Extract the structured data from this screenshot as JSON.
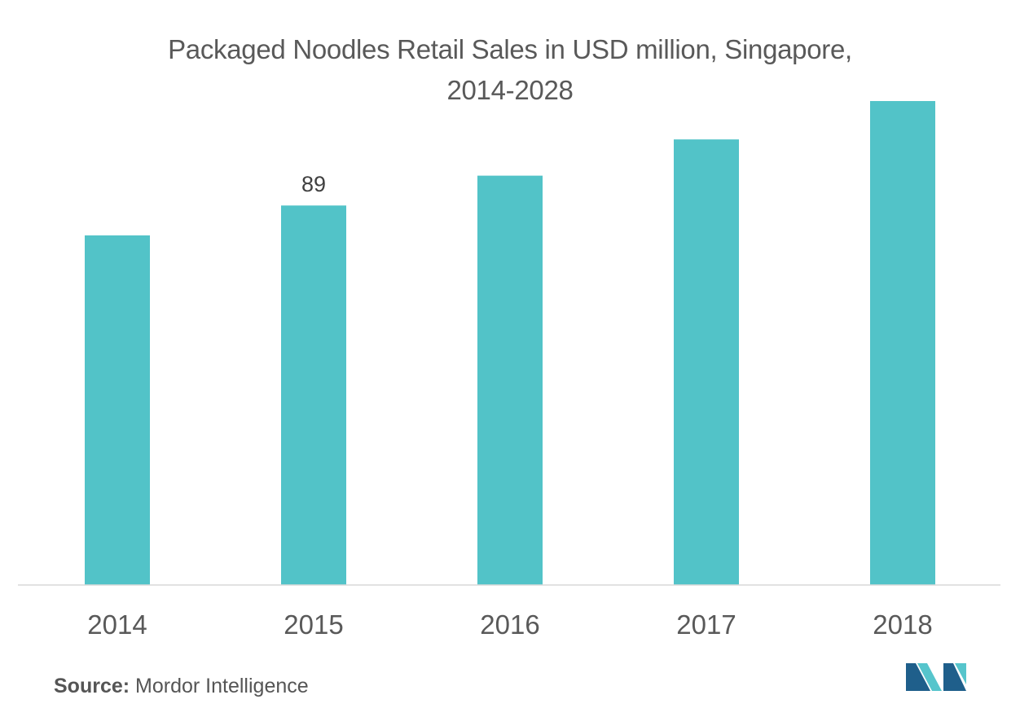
{
  "title_line1": "Packaged Noodles Retail Sales in USD million, Singapore,",
  "title_line2": "2014-2028",
  "source_label": "Source:",
  "source_name": "Mordor Intelligence",
  "colors": {
    "bar": "#52c3c8",
    "axis": "#d9d9d9",
    "text": "#595959",
    "logo_dark": "#1f5f8b",
    "logo_light": "#56c5cc"
  },
  "chart_data": {
    "type": "bar",
    "title": "Packaged Noodles Retail Sales in USD million, Singapore, 2014-2028",
    "categories": [
      "2014",
      "2015",
      "2016",
      "2017",
      "2018"
    ],
    "values": [
      82,
      89,
      96,
      104.5,
      113.5
    ],
    "data_labels": [
      null,
      "89",
      null,
      null,
      null
    ],
    "ylim": [
      0,
      120
    ],
    "xlabel": "",
    "ylabel": "",
    "grid": false,
    "legend": "none"
  }
}
